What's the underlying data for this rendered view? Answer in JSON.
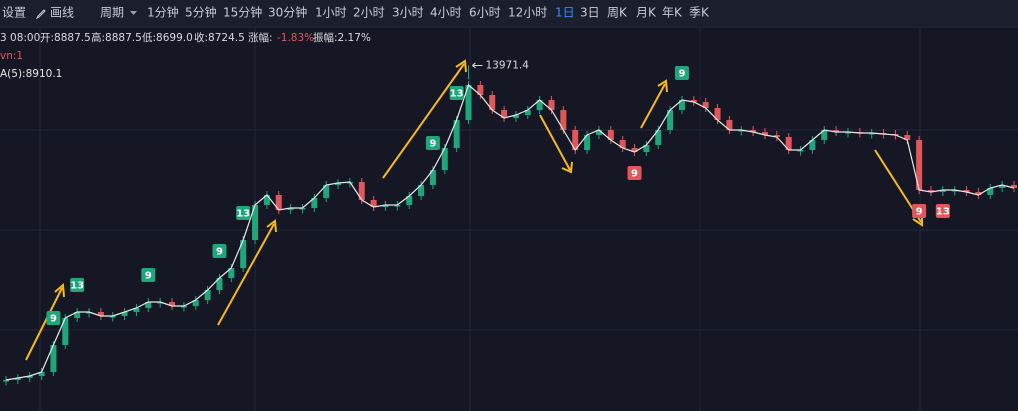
{
  "toolbar": {
    "settings": "设置",
    "draw": "画线",
    "period": "周期",
    "intervals": [
      "1分钟",
      "5分钟",
      "15分钟",
      "30分钟",
      "1小时",
      "2小时",
      "3小时",
      "4小时",
      "6小时",
      "12小时",
      "1日",
      "3日",
      "周K",
      "月K",
      "年K",
      "季K"
    ],
    "active_index": 10
  },
  "info": {
    "time": "3 08:00",
    "items": [
      "开:8887.5",
      "高:8887.5",
      "低:8699.0",
      "收:8724.5"
    ],
    "change_label": "涨幅:",
    "change_value": "-1.83%",
    "amplitude": "振幅:2.17%"
  },
  "indicators": [
    {
      "text": "vn:1",
      "color": "#e0575b"
    },
    {
      "text": "A(5):8910.1",
      "color": "#e6e6e6"
    }
  ],
  "chart_data": {
    "type": "candlestick",
    "ylim": [
      0,
      15000
    ],
    "up_color": "#1fa67a",
    "down_color": "#e0575b",
    "line_color": "#e8e8e8",
    "series": [
      {
        "values": [
          1253,
          1334,
          1415,
          1577,
          2668,
          3760,
          4003,
          4003,
          3841,
          3841,
          4003,
          4164,
          4407,
          4407,
          4245,
          4245,
          4488,
          4892,
          5377,
          5781,
          6914,
          8329,
          8733,
          8126,
          8207,
          8207,
          8612,
          9137,
          9218,
          9258,
          8531,
          8248,
          8329,
          8329,
          8692,
          9137,
          9744,
          10633,
          11765,
          13180,
          12776,
          12169,
          11846,
          11967,
          12169,
          12574,
          12169,
          11361,
          10552,
          11159,
          11361,
          10957,
          10633,
          10471,
          10754,
          11361,
          12169,
          12574,
          12493,
          12250,
          11765,
          11361,
          11361,
          11280,
          11159,
          11078,
          10552,
          10552,
          10957,
          11361,
          11280,
          11280,
          11240,
          11240,
          11199,
          11159,
          10957,
          8935,
          8854,
          8935,
          8935,
          8854,
          8733,
          9016,
          9137,
          9016
        ]
      }
    ],
    "markers": [
      {
        "index": 4,
        "label": "9",
        "side": "up"
      },
      {
        "index": 6,
        "label": "13",
        "side": "up"
      },
      {
        "index": 12,
        "label": "9",
        "side": "up"
      },
      {
        "index": 18,
        "label": "9",
        "side": "up"
      },
      {
        "index": 20,
        "label": "13",
        "side": "up"
      },
      {
        "index": 36,
        "label": "9",
        "side": "up"
      },
      {
        "index": 38,
        "label": "13",
        "side": "up"
      },
      {
        "index": 57,
        "label": "9",
        "side": "up"
      },
      {
        "index": 53,
        "label": "9",
        "side": "down"
      },
      {
        "index": 77,
        "label": "9",
        "side": "down"
      },
      {
        "index": 79,
        "label": "13",
        "side": "down"
      }
    ],
    "peak": {
      "index": 39,
      "value": 13971.4
    }
  }
}
